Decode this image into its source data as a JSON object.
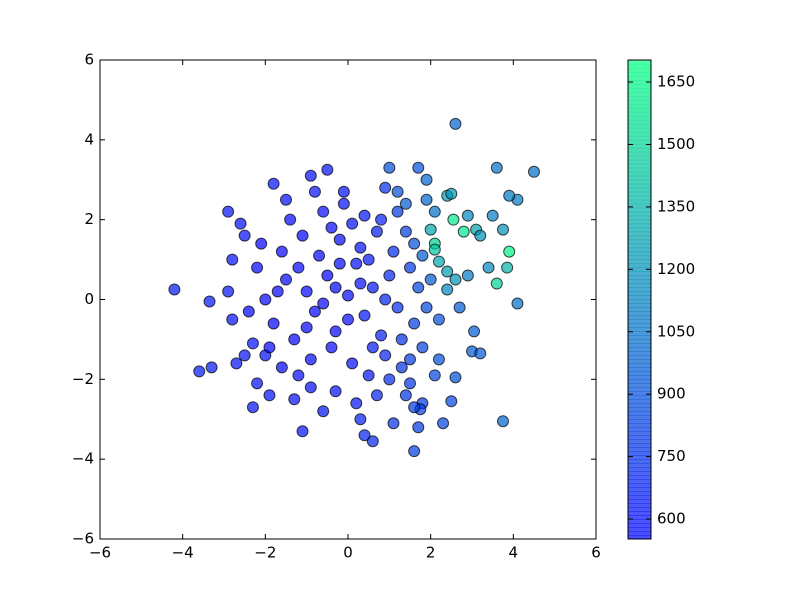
{
  "chart_data": {
    "type": "scatter",
    "xlim": [
      -6,
      6
    ],
    "ylim": [
      -6,
      6
    ],
    "xticks": [
      {
        "value": -6,
        "label": "−6"
      },
      {
        "value": -4,
        "label": "−4"
      },
      {
        "value": -2,
        "label": "−2"
      },
      0,
      2,
      4,
      6
    ],
    "yticks": [
      {
        "value": -6,
        "label": "−6"
      },
      {
        "value": -4,
        "label": "−4"
      },
      {
        "value": -2,
        "label": "−2"
      },
      0,
      2,
      4,
      6
    ],
    "colormap": "winter",
    "marker_alpha": 0.7,
    "clim": [
      552,
      1703
    ],
    "cticks": [
      600,
      750,
      900,
      1050,
      1200,
      1350,
      1500,
      1650
    ],
    "points": [
      [
        -4.2,
        0.25,
        650
      ],
      [
        -3.6,
        -1.8,
        650
      ],
      [
        -3.3,
        -1.7,
        650
      ],
      [
        -3.35,
        -0.05,
        650
      ],
      [
        -2.9,
        2.2,
        620
      ],
      [
        -2.9,
        0.2,
        620
      ],
      [
        -2.5,
        -1.4,
        620
      ],
      [
        -1.8,
        2.9,
        600
      ],
      [
        -1.1,
        -3.3,
        620
      ],
      [
        -0.9,
        3.1,
        600
      ],
      [
        -0.5,
        3.25,
        620
      ],
      [
        0.6,
        -3.55,
        720
      ],
      [
        0.4,
        -3.4,
        700
      ],
      [
        1.6,
        -3.8,
        820
      ],
      [
        1.0,
        3.3,
        900
      ],
      [
        1.7,
        3.3,
        900
      ],
      [
        2.6,
        4.4,
        1000
      ],
      [
        3.6,
        3.3,
        1050
      ],
      [
        4.5,
        3.2,
        1050
      ],
      [
        4.1,
        2.5,
        1100
      ],
      [
        3.9,
        2.6,
        1100
      ],
      [
        3.75,
        -3.05,
        1000
      ],
      [
        4.1,
        -0.1,
        1050
      ],
      [
        3.6,
        0.4,
        1500
      ],
      [
        3.85,
        0.8,
        1350
      ],
      [
        3.9,
        1.2,
        1650
      ],
      [
        2.8,
        1.7,
        1600
      ],
      [
        2.55,
        2.0,
        1600
      ],
      [
        2.1,
        1.4,
        1500
      ],
      [
        2.1,
        1.25,
        1450
      ],
      [
        2.4,
        2.6,
        1250
      ],
      [
        2.5,
        2.65,
        1200
      ],
      [
        3.1,
        1.75,
        1300
      ],
      [
        3.2,
        1.6,
        1200
      ],
      [
        3.5,
        2.1,
        1100
      ],
      [
        3.75,
        1.75,
        1200
      ],
      [
        3.4,
        0.8,
        1150
      ],
      [
        2.9,
        0.6,
        1100
      ],
      [
        2.4,
        0.7,
        1250
      ],
      [
        2.6,
        0.5,
        1200
      ],
      [
        2.4,
        0.25,
        1150
      ],
      [
        2.2,
        0.95,
        1300
      ],
      [
        2.0,
        1.75,
        1300
      ],
      [
        2.9,
        2.1,
        1150
      ],
      [
        3.0,
        -1.3,
        950
      ],
      [
        3.2,
        -1.35,
        950
      ],
      [
        3.05,
        -0.8,
        950
      ],
      [
        2.6,
        -1.95,
        900
      ],
      [
        2.5,
        -2.55,
        850
      ],
      [
        2.3,
        -3.1,
        850
      ],
      [
        1.8,
        -2.6,
        800
      ],
      [
        1.75,
        -2.75,
        800
      ],
      [
        1.7,
        -3.2,
        800
      ],
      [
        1.6,
        -2.7,
        800
      ],
      [
        2.1,
        -1.9,
        850
      ],
      [
        2.2,
        -1.5,
        900
      ],
      [
        2.7,
        -0.2,
        950
      ],
      [
        2.2,
        -0.5,
        900
      ],
      [
        1.5,
        -1.5,
        800
      ],
      [
        1.9,
        2.5,
        1000
      ],
      [
        1.4,
        2.4,
        950
      ],
      [
        1.2,
        2.7,
        900
      ],
      [
        1.9,
        3.0,
        1000
      ],
      [
        2.1,
        2.2,
        1050
      ],
      [
        -2.5,
        1.6,
        600
      ],
      [
        -2.8,
        1.0,
        600
      ],
      [
        -2.8,
        -0.5,
        600
      ],
      [
        -2.3,
        -1.1,
        600
      ],
      [
        -2.0,
        -1.4,
        600
      ],
      [
        -1.9,
        -2.4,
        600
      ],
      [
        -2.2,
        -2.1,
        600
      ],
      [
        -2.3,
        -2.7,
        620
      ],
      [
        -1.5,
        0.5,
        560
      ],
      [
        -1.2,
        0.8,
        560
      ],
      [
        -1.0,
        0.2,
        560
      ],
      [
        -0.8,
        -0.3,
        560
      ],
      [
        -0.5,
        0.6,
        560
      ],
      [
        -0.3,
        -0.8,
        570
      ],
      [
        0,
        0.1,
        580
      ],
      [
        0.2,
        0.9,
        600
      ],
      [
        0.4,
        -0.4,
        620
      ],
      [
        0.6,
        0.3,
        650
      ],
      [
        0.8,
        -0.9,
        680
      ],
      [
        1.0,
        0.6,
        720
      ],
      [
        1.2,
        -0.2,
        750
      ],
      [
        -1.8,
        -0.6,
        560
      ],
      [
        -1.6,
        1.2,
        560
      ],
      [
        -1.3,
        -1.0,
        560
      ],
      [
        -1.1,
        1.6,
        560
      ],
      [
        -0.9,
        -1.5,
        570
      ],
      [
        -0.7,
        1.1,
        565
      ],
      [
        -0.4,
        -1.2,
        575
      ],
      [
        -0.2,
        1.5,
        590
      ],
      [
        0.1,
        -1.6,
        600
      ],
      [
        0.3,
        1.3,
        620
      ],
      [
        0.5,
        -1.9,
        640
      ],
      [
        0.7,
        1.7,
        670
      ],
      [
        0.9,
        -1.4,
        700
      ],
      [
        1.1,
        1.2,
        730
      ],
      [
        1.3,
        -1.0,
        760
      ],
      [
        1.5,
        0.8,
        800
      ],
      [
        1.6,
        -0.6,
        820
      ],
      [
        1.7,
        0.3,
        850
      ],
      [
        1.4,
        1.7,
        820
      ],
      [
        -2.0,
        0.0,
        560
      ],
      [
        -2.2,
        0.8,
        560
      ],
      [
        -2.4,
        -0.3,
        560
      ],
      [
        -2.1,
        1.4,
        560
      ],
      [
        -1.9,
        -1.2,
        560
      ],
      [
        -1.6,
        -1.7,
        565
      ],
      [
        -1.4,
        2.0,
        570
      ],
      [
        -0.6,
        2.2,
        580
      ],
      [
        -0.1,
        2.4,
        600
      ],
      [
        0.4,
        2.1,
        630
      ],
      [
        0.8,
        2.0,
        680
      ],
      [
        -0.3,
        -2.3,
        600
      ],
      [
        0.2,
        -2.6,
        640
      ],
      [
        0.7,
        -2.4,
        700
      ],
      [
        -0.9,
        -2.2,
        590
      ],
      [
        -1.3,
        -2.5,
        600
      ],
      [
        0.0,
        -0.5,
        575
      ],
      [
        -0.6,
        -0.1,
        565
      ],
      [
        0.3,
        0.4,
        600
      ],
      [
        -0.2,
        0.9,
        580
      ],
      [
        0.9,
        0.0,
        690
      ],
      [
        0.6,
        -1.2,
        660
      ],
      [
        -1.0,
        -0.7,
        560
      ],
      [
        -1.7,
        0.2,
        560
      ],
      [
        -0.4,
        1.8,
        585
      ],
      [
        1.2,
        2.2,
        800
      ],
      [
        1.0,
        -2.0,
        730
      ],
      [
        1.5,
        -2.1,
        780
      ],
      [
        1.3,
        -1.7,
        760
      ],
      [
        1.8,
        -1.2,
        850
      ],
      [
        1.9,
        -0.2,
        870
      ],
      [
        2.0,
        0.5,
        950
      ],
      [
        1.8,
        1.1,
        950
      ],
      [
        1.6,
        1.4,
        900
      ],
      [
        0.1,
        1.9,
        610
      ],
      [
        -0.8,
        2.7,
        600
      ],
      [
        -0.1,
        2.7,
        610
      ],
      [
        0.3,
        -3.0,
        680
      ],
      [
        -0.6,
        -2.8,
        620
      ],
      [
        1.1,
        -3.1,
        760
      ],
      [
        1.4,
        -2.4,
        780
      ],
      [
        -1.5,
        2.5,
        590
      ],
      [
        -2.6,
        1.9,
        600
      ],
      [
        -2.7,
        -1.6,
        620
      ],
      [
        0.9,
        2.8,
        750
      ],
      [
        -0.3,
        0.3,
        570
      ],
      [
        0.5,
        1.0,
        640
      ],
      [
        -1.2,
        -1.9,
        580
      ]
    ]
  }
}
